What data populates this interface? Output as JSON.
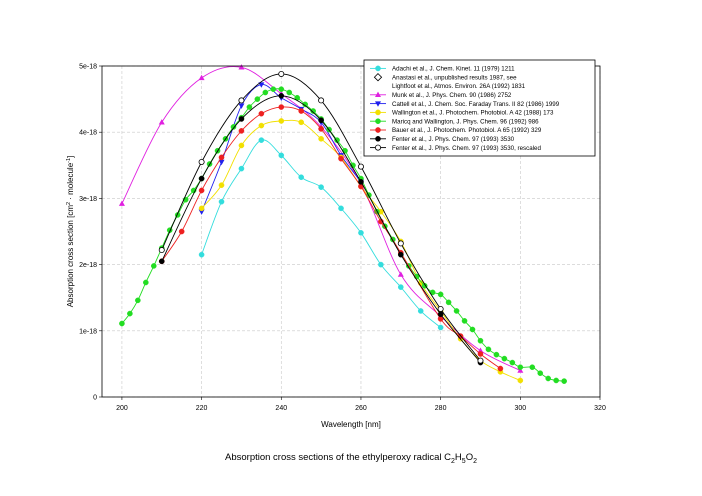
{
  "chart_data": {
    "type": "scatter",
    "title": "",
    "xlabel": "Wavelength [nm]",
    "ylabel_parts": {
      "base": "Absorption cross section [cm",
      "sup1": "2",
      "mid": " · molecule",
      "sup2": "-1",
      "end": "]"
    },
    "xlim": [
      195,
      320
    ],
    "ylim": [
      0,
      5e-18
    ],
    "x_ticks": [
      200,
      220,
      240,
      260,
      280,
      300,
      320
    ],
    "y_ticks": [
      {
        "v": 0,
        "label": "0"
      },
      {
        "v": 1e-18,
        "label": "1e-18"
      },
      {
        "v": 2e-18,
        "label": "2e-18"
      },
      {
        "v": 3e-18,
        "label": "3e-18"
      },
      {
        "v": 4e-18,
        "label": "4e-18"
      },
      {
        "v": 5e-18,
        "label": "5e-18"
      }
    ],
    "grid": true,
    "legend_position": "top-right",
    "series": [
      {
        "name": "Adachi et al., J. Chem. Kinet. 11 (1979) 1211",
        "color": "#33dddd",
        "marker": "circle",
        "line": true,
        "x": [
          220,
          225,
          230,
          235,
          240,
          245,
          250,
          255,
          260,
          265,
          270,
          275,
          280
        ],
        "y": [
          2.15e-18,
          2.95e-18,
          3.45e-18,
          3.88e-18,
          3.65e-18,
          3.32e-18,
          3.17e-18,
          2.85e-18,
          2.48e-18,
          2e-18,
          1.66e-18,
          1.3e-18,
          1.05e-18
        ]
      },
      {
        "name": "Anastasi et al., unpublished results 1987, see",
        "name2": "Lightfoot et al., Atmos. Environ. 26A (1992) 1831",
        "color": "#000000",
        "marker": "diamond-open",
        "line": false,
        "x": [],
        "y": []
      },
      {
        "name": "Munk et al., J. Phys. Chem. 90 (1986) 2752",
        "color": "#e020e0",
        "marker": "triangle-up",
        "line": true,
        "x": [
          200,
          210,
          220,
          230,
          240,
          250,
          260,
          270,
          280,
          290,
          300
        ],
        "y": [
          2.92e-18,
          4.15e-18,
          4.82e-18,
          4.98e-18,
          4.58e-18,
          4.08e-18,
          3.22e-18,
          1.85e-18,
          1.22e-18,
          7e-19,
          4e-19
        ]
      },
      {
        "name": "Cattell et al., J. Chem. Soc. Faraday Trans. II 82 (1986) 1999",
        "color": "#2020ee",
        "marker": "triangle-down",
        "line": true,
        "x": [
          220,
          225,
          230,
          235,
          240,
          245,
          250,
          255,
          260
        ],
        "y": [
          2.8e-18,
          3.55e-18,
          4.4e-18,
          4.72e-18,
          4.52e-18,
          4.35e-18,
          4.15e-18,
          3.65e-18,
          3.25e-18
        ]
      },
      {
        "name": "Wallington et al., J. Photochem. Photobiol. A 42 (1988) 173",
        "color": "#f2e000",
        "marker": "circle",
        "line": true,
        "x": [
          220,
          225,
          230,
          235,
          240,
          245,
          250,
          255,
          260,
          265,
          270,
          275,
          280,
          285,
          290,
          295,
          300
        ],
        "y": [
          2.85e-18,
          3.2e-18,
          3.8e-18,
          4.1e-18,
          4.17e-18,
          4.15e-18,
          3.9e-18,
          3.62e-18,
          3.18e-18,
          2.8e-18,
          2.35e-18,
          1.72e-18,
          1.3e-18,
          8.8e-19,
          5.5e-19,
          3.8e-19,
          2.5e-19
        ]
      },
      {
        "name": "Maricq and Wallington, J. Phys. Chem. 96 (1992) 986",
        "color": "#22dd22",
        "marker": "circle",
        "line": true,
        "x": [
          200,
          202,
          204,
          206,
          208,
          210,
          212,
          214,
          216,
          218,
          220,
          222,
          224,
          226,
          228,
          230,
          232,
          234,
          236,
          238,
          240,
          242,
          244,
          246,
          248,
          250,
          252,
          254,
          256,
          258,
          260,
          262,
          264,
          266,
          268,
          270,
          272,
          274,
          276,
          278,
          280,
          282,
          284,
          286,
          288,
          290,
          292,
          294,
          296,
          298,
          300,
          303,
          305,
          307,
          309,
          311
        ],
        "y": [
          1.11e-18,
          1.26e-18,
          1.46e-18,
          1.73e-18,
          1.98e-18,
          2.25e-18,
          2.52e-18,
          2.75e-18,
          2.98e-18,
          3.12e-18,
          3.3e-18,
          3.52e-18,
          3.72e-18,
          3.9e-18,
          4.08e-18,
          4.22e-18,
          4.38e-18,
          4.5e-18,
          4.6e-18,
          4.65e-18,
          4.65e-18,
          4.6e-18,
          4.52e-18,
          4.42e-18,
          4.32e-18,
          4.2e-18,
          4.04e-18,
          3.88e-18,
          3.72e-18,
          3.5e-18,
          3.3e-18,
          3.05e-18,
          2.8e-18,
          2.58e-18,
          2.38e-18,
          2.16e-18,
          1.98e-18,
          1.82e-18,
          1.68e-18,
          1.58e-18,
          1.55e-18,
          1.43e-18,
          1.3e-18,
          1.15e-18,
          1.02e-18,
          8.5e-19,
          7.2e-19,
          6.4e-19,
          5.8e-19,
          5.2e-19,
          4.5e-19,
          4.5e-19,
          3.6e-19,
          2.8e-19,
          2.5e-19,
          2.4e-19
        ]
      },
      {
        "name": "Bauer et al., J. Photochem. Photobiol. A 65 (1992) 329",
        "color": "#ee2020",
        "marker": "circle",
        "line": true,
        "x": [
          210,
          215,
          220,
          225,
          230,
          235,
          240,
          245,
          250,
          255,
          260,
          265,
          270,
          280,
          285,
          290,
          295
        ],
        "y": [
          2.05e-18,
          2.5e-18,
          3.12e-18,
          3.62e-18,
          4.02e-18,
          4.28e-18,
          4.38e-18,
          4.32e-18,
          4.05e-18,
          3.6e-18,
          3.18e-18,
          2.65e-18,
          2.18e-18,
          1.18e-18,
          9.2e-19,
          6.5e-19,
          4.3e-19
        ]
      },
      {
        "name": "Fenter et al., J. Phys. Chem. 97 (1993) 3530",
        "color": "#000000",
        "marker": "circle",
        "line": true,
        "x": [
          210,
          220,
          230,
          240,
          250,
          260,
          270,
          280,
          290
        ],
        "y": [
          2.05e-18,
          3.3e-18,
          4.2e-18,
          4.55e-18,
          4.18e-18,
          3.25e-18,
          2.15e-18,
          1.25e-18,
          5.2e-19
        ]
      },
      {
        "name": "Fenter et al., J. Phys. Chem. 97 (1993) 3530, rescaled",
        "color": "#000000",
        "marker": "circle-open",
        "line": true,
        "x": [
          210,
          220,
          230,
          240,
          250,
          260,
          270,
          280,
          290
        ],
        "y": [
          2.22e-18,
          3.55e-18,
          4.48e-18,
          4.88e-18,
          4.48e-18,
          3.48e-18,
          2.32e-18,
          1.33e-18,
          5.5e-19
        ]
      }
    ]
  },
  "caption": {
    "text": "Absorption cross sections of the ethylperoxy radical C",
    "sub1": "2",
    "mid1": "H",
    "sub2": "5",
    "mid2": "O",
    "sub3": "2"
  }
}
